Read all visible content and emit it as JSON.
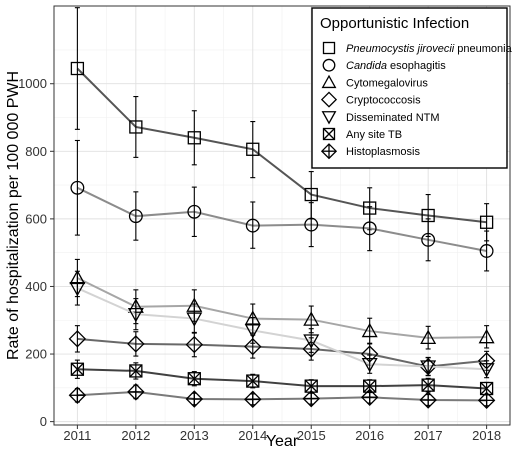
{
  "chart_data": {
    "type": "line",
    "x": [
      2011,
      2012,
      2013,
      2014,
      2015,
      2016,
      2017,
      2018
    ],
    "xlabel": "Year",
    "ylabel": "Rate of hospitalization per 100 000 PWH",
    "ylim": [
      -10,
      1230
    ],
    "xlim": [
      2010.6,
      2018.4
    ],
    "yticks": [
      0,
      200,
      400,
      600,
      800,
      1000
    ],
    "grid": true,
    "legend": {
      "title": "Opportunistic Infection",
      "position": "top-right"
    },
    "series": [
      {
        "name_parts": [
          {
            "text": "Pneumocystis jirovecii",
            "italic": true
          },
          {
            "text": " pneumonia",
            "italic": false
          }
        ],
        "marker": "square",
        "color": "#555555",
        "values": [
          1045,
          872,
          840,
          806,
          672,
          632,
          610,
          590
        ],
        "err_low": [
          865,
          782,
          760,
          722,
          600,
          568,
          548,
          535
        ],
        "err_high": [
          1225,
          962,
          920,
          888,
          740,
          692,
          672,
          645
        ]
      },
      {
        "name_parts": [
          {
            "text": "Candida",
            "italic": true
          },
          {
            "text": " esophagitis",
            "italic": false
          }
        ],
        "marker": "circle",
        "color": "#8c8c8c",
        "values": [
          692,
          608,
          621,
          580,
          583,
          572,
          538,
          505
        ],
        "err_low": [
          552,
          537,
          548,
          513,
          518,
          506,
          476,
          446
        ],
        "err_high": [
          832,
          680,
          694,
          650,
          648,
          636,
          600,
          564
        ]
      },
      {
        "name_parts": [
          {
            "text": "Cytomegalovirus",
            "italic": false
          }
        ],
        "marker": "triangle-up",
        "color": "#a6a6a6",
        "values": [
          425,
          340,
          343,
          305,
          302,
          268,
          248,
          250
        ],
        "err_low": [
          370,
          290,
          297,
          262,
          263,
          230,
          215,
          218
        ],
        "err_high": [
          480,
          390,
          390,
          348,
          342,
          306,
          282,
          284
        ]
      },
      {
        "name_parts": [
          {
            "text": "Cryptococcosis",
            "italic": false
          }
        ],
        "marker": "diamond",
        "color": "#696969",
        "values": [
          245,
          230,
          228,
          222,
          215,
          200,
          163,
          180
        ],
        "err_low": [
          206,
          194,
          192,
          188,
          182,
          168,
          136,
          152
        ],
        "err_high": [
          284,
          266,
          264,
          256,
          248,
          232,
          190,
          208
        ]
      },
      {
        "name_parts": [
          {
            "text": "Disseminated NTM",
            "italic": false
          }
        ],
        "marker": "triangle-down",
        "color": "#d3d3d3",
        "values": [
          395,
          318,
          305,
          270,
          240,
          170,
          163,
          155
        ],
        "err_low": [
          345,
          272,
          262,
          232,
          205,
          143,
          137,
          130
        ],
        "err_high": [
          445,
          364,
          348,
          308,
          275,
          197,
          189,
          180
        ]
      },
      {
        "name_parts": [
          {
            "text": "Any site TB",
            "italic": false
          }
        ],
        "marker": "box-x",
        "color": "#404040",
        "values": [
          155,
          150,
          127,
          120,
          105,
          105,
          108,
          98
        ],
        "err_low": [
          128,
          126,
          106,
          100,
          86,
          86,
          88,
          80
        ],
        "err_high": [
          182,
          174,
          148,
          140,
          124,
          124,
          128,
          116
        ]
      },
      {
        "name_parts": [
          {
            "text": "Histoplasmosis",
            "italic": false
          }
        ],
        "marker": "diamond-plus",
        "color": "#7a7a7a",
        "values": [
          78,
          88,
          67,
          66,
          68,
          72,
          64,
          63
        ],
        "err_low": [
          58,
          68,
          50,
          50,
          52,
          55,
          48,
          47
        ],
        "err_high": [
          98,
          108,
          84,
          82,
          84,
          89,
          80,
          79
        ]
      }
    ]
  }
}
